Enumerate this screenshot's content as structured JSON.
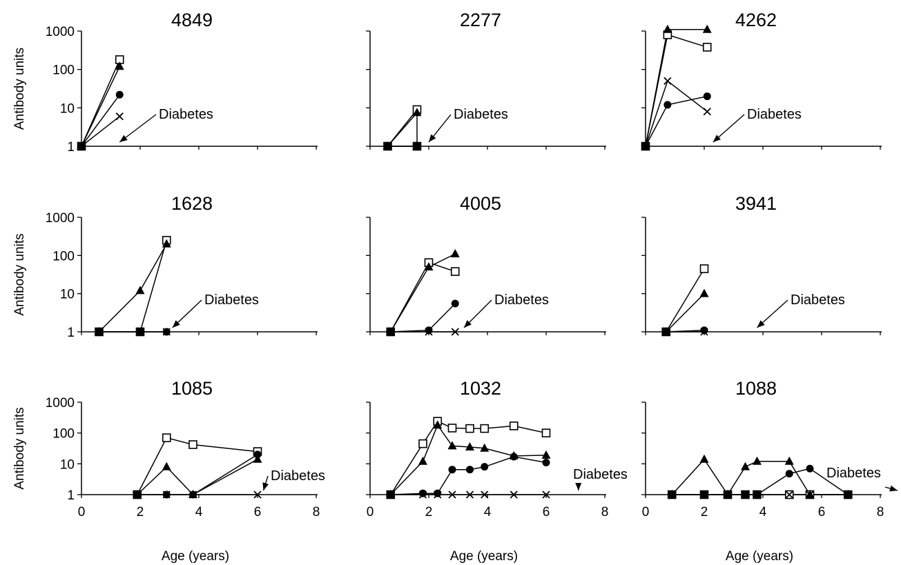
{
  "chart_data": [
    {
      "type": "line",
      "title": "4849",
      "ylabel": "Antibody units",
      "xlabel": "",
      "yscale": "log",
      "ylim": [
        1,
        1000
      ],
      "xlim": [
        0,
        8
      ],
      "yticks": [
        "1",
        "10",
        "100",
        "1000"
      ],
      "xticks": [],
      "annotation": {
        "text": "Diabetes",
        "arrow_to": [
          1.3,
          1.0
        ]
      },
      "series": [
        {
          "marker": "open-square",
          "x": [
            0,
            1.3
          ],
          "y": [
            1,
            180
          ]
        },
        {
          "marker": "filled-triangle",
          "x": [
            0,
            1.3
          ],
          "y": [
            1,
            120
          ]
        },
        {
          "marker": "filled-circle",
          "x": [
            0,
            1.3
          ],
          "y": [
            1,
            22
          ]
        },
        {
          "marker": "cross",
          "x": [
            0,
            1.3
          ],
          "y": [
            1,
            6
          ]
        }
      ]
    },
    {
      "type": "line",
      "title": "2277",
      "ylabel": "",
      "xlabel": "",
      "yscale": "log",
      "ylim": [
        1,
        1000
      ],
      "xlim": [
        0,
        8
      ],
      "yticks": [],
      "xticks": [],
      "annotation": {
        "text": "Diabetes",
        "arrow_to": [
          2.0,
          1.0
        ]
      },
      "series": [
        {
          "marker": "open-square",
          "x": [
            0.6,
            1.6,
            1.6
          ],
          "y": [
            1,
            9,
            1
          ]
        },
        {
          "marker": "filled-triangle",
          "x": [
            0.6,
            1.6
          ],
          "y": [
            1,
            7.5
          ]
        },
        {
          "marker": "filled-circle",
          "x": [
            0.6,
            1.6
          ],
          "y": [
            1,
            1
          ]
        },
        {
          "marker": "cross",
          "x": [
            0.6,
            1.6
          ],
          "y": [
            1,
            1
          ]
        }
      ]
    },
    {
      "type": "line",
      "title": "4262",
      "ylabel": "",
      "xlabel": "",
      "yscale": "log",
      "ylim": [
        1,
        1000
      ],
      "xlim": [
        0,
        8
      ],
      "yticks": [],
      "xticks": [],
      "annotation": {
        "text": "Diabetes",
        "arrow_to": [
          2.3,
          1.0
        ]
      },
      "series": [
        {
          "marker": "open-square",
          "x": [
            0,
            0.75,
            2.1
          ],
          "y": [
            1,
            800,
            380
          ]
        },
        {
          "marker": "filled-triangle",
          "x": [
            0,
            0.75,
            2.1
          ],
          "y": [
            1,
            1100,
            1100
          ]
        },
        {
          "marker": "filled-circle",
          "x": [
            0,
            0.75,
            2.1
          ],
          "y": [
            1,
            12,
            20
          ]
        },
        {
          "marker": "cross",
          "x": [
            0,
            0.75,
            2.1
          ],
          "y": [
            1,
            50,
            8
          ]
        }
      ]
    },
    {
      "type": "line",
      "title": "1628",
      "ylabel": "Antibody units",
      "xlabel": "",
      "yscale": "log",
      "ylim": [
        1,
        1000
      ],
      "xlim": [
        0,
        8
      ],
      "yticks": [
        "1",
        "10",
        "100",
        "1000"
      ],
      "xticks": [],
      "annotation": {
        "text": "Diabetes",
        "arrow_to": [
          3.1,
          1.0
        ]
      },
      "series": [
        {
          "marker": "open-square",
          "x": [
            0.6,
            2.0,
            2.9
          ],
          "y": [
            1,
            1,
            250
          ]
        },
        {
          "marker": "filled-triangle",
          "x": [
            0.6,
            2.0,
            2.9
          ],
          "y": [
            1,
            12,
            200
          ]
        },
        {
          "marker": "filled-circle",
          "x": [
            0.6,
            2.0,
            2.9
          ],
          "y": [
            1,
            1,
            1
          ]
        },
        {
          "marker": "cross",
          "x": [
            0.6,
            2.0,
            2.9
          ],
          "y": [
            1,
            1,
            1
          ]
        }
      ]
    },
    {
      "type": "line",
      "title": "4005",
      "ylabel": "",
      "xlabel": "",
      "yscale": "log",
      "ylim": [
        1,
        1000
      ],
      "xlim": [
        0,
        8
      ],
      "yticks": [],
      "xticks": [],
      "annotation": {
        "text": "Diabetes",
        "arrow_to": [
          3.2,
          1.0
        ]
      },
      "series": [
        {
          "marker": "open-square",
          "x": [
            0.7,
            2.0,
            2.9
          ],
          "y": [
            1,
            65,
            38
          ]
        },
        {
          "marker": "filled-triangle",
          "x": [
            0.7,
            2.0,
            2.9
          ],
          "y": [
            1,
            50,
            110
          ]
        },
        {
          "marker": "filled-circle",
          "x": [
            0.7,
            2.0,
            2.9
          ],
          "y": [
            1,
            1.1,
            5.5
          ]
        },
        {
          "marker": "cross",
          "x": [
            0.7,
            2.0,
            2.9
          ],
          "y": [
            1,
            1,
            1
          ]
        }
      ]
    },
    {
      "type": "line",
      "title": "3941",
      "ylabel": "",
      "xlabel": "",
      "yscale": "log",
      "ylim": [
        1,
        1000
      ],
      "xlim": [
        0,
        8
      ],
      "yticks": [],
      "xticks": [],
      "annotation": {
        "text": "Diabetes",
        "arrow_to": [
          3.8,
          1.0
        ]
      },
      "series": [
        {
          "marker": "open-square",
          "x": [
            0.7,
            2.0
          ],
          "y": [
            1,
            45
          ]
        },
        {
          "marker": "filled-triangle",
          "x": [
            0.7,
            2.0
          ],
          "y": [
            1,
            10
          ]
        },
        {
          "marker": "filled-circle",
          "x": [
            0.7,
            2.0
          ],
          "y": [
            1,
            1.1
          ]
        },
        {
          "marker": "cross",
          "x": [
            0.7,
            2.0
          ],
          "y": [
            1,
            1
          ]
        }
      ]
    },
    {
      "type": "line",
      "title": "1085",
      "ylabel": "Antibody units",
      "xlabel": "Age (years)",
      "yscale": "log",
      "ylim": [
        1,
        1000
      ],
      "xlim": [
        0,
        8
      ],
      "yticks": [
        "1",
        "10",
        "100",
        "1000"
      ],
      "xticks": [
        "0",
        "2",
        "4",
        "6",
        "8"
      ],
      "annotation": {
        "text": "Diabetes",
        "arrow_to": [
          6.2,
          1.0
        ]
      },
      "series": [
        {
          "marker": "open-square",
          "x": [
            1.9,
            2.9,
            3.8,
            6.0
          ],
          "y": [
            1,
            70,
            42,
            25
          ]
        },
        {
          "marker": "filled-triangle",
          "x": [
            1.9,
            2.9,
            3.8,
            6.0
          ],
          "y": [
            1,
            8,
            1,
            14
          ]
        },
        {
          "marker": "filled-circle",
          "x": [
            1.9,
            2.9,
            3.8,
            6.0
          ],
          "y": [
            1,
            1,
            1,
            20
          ]
        },
        {
          "marker": "cross",
          "x": [
            1.9,
            2.9,
            3.8,
            6.0
          ],
          "y": [
            1,
            1,
            1,
            1
          ]
        }
      ]
    },
    {
      "type": "line",
      "title": "1032",
      "ylabel": "",
      "xlabel": "Age (years)",
      "yscale": "log",
      "ylim": [
        1,
        1000
      ],
      "xlim": [
        0,
        8
      ],
      "yticks": [],
      "xticks": [
        "0",
        "2",
        "4",
        "6",
        "8"
      ],
      "annotation": {
        "text": "Diabetes",
        "arrow_to": [
          7.1,
          1.0
        ]
      },
      "series": [
        {
          "marker": "open-square",
          "x": [
            0.7,
            1.8,
            2.3,
            2.8,
            3.4,
            3.9,
            4.9,
            6.0
          ],
          "y": [
            1,
            45,
            240,
            145,
            140,
            140,
            170,
            100
          ]
        },
        {
          "marker": "filled-triangle",
          "x": [
            0.7,
            1.8,
            2.3,
            2.8,
            3.4,
            3.9,
            4.9,
            6.0
          ],
          "y": [
            1,
            12,
            180,
            38,
            35,
            32,
            18,
            19
          ]
        },
        {
          "marker": "filled-circle",
          "x": [
            0.7,
            1.8,
            2.3,
            2.8,
            3.4,
            3.9,
            4.9,
            6.0
          ],
          "y": [
            1,
            1.1,
            1.1,
            6.5,
            6.5,
            8,
            17,
            11
          ]
        },
        {
          "marker": "cross",
          "x": [
            0.7,
            1.8,
            2.3,
            2.8,
            3.4,
            3.9,
            4.9,
            6.0
          ],
          "y": [
            1,
            1,
            1,
            1,
            1,
            1,
            1,
            1
          ]
        }
      ]
    },
    {
      "type": "line",
      "title": "1088",
      "ylabel": "",
      "xlabel": "Age (years)",
      "yscale": "log",
      "ylim": [
        1,
        1000
      ],
      "xlim": [
        0,
        8
      ],
      "yticks": [],
      "xticks": [
        "0",
        "2",
        "4",
        "6",
        "8"
      ],
      "annotation": {
        "text": "Diabetes",
        "arrow_to": [
          8.6,
          1.0
        ]
      },
      "series": [
        {
          "marker": "open-square",
          "x": [
            0.9,
            2.0,
            2.8,
            3.4,
            3.8,
            4.9,
            5.6,
            6.9
          ],
          "y": [
            1,
            1,
            1,
            1,
            1,
            1,
            1,
            1
          ]
        },
        {
          "marker": "filled-triangle",
          "x": [
            0.9,
            2.0,
            2.8,
            3.4,
            3.8,
            4.9,
            5.6,
            6.9
          ],
          "y": [
            1,
            14,
            1,
            8,
            12,
            12,
            1,
            1
          ]
        },
        {
          "marker": "filled-circle",
          "x": [
            0.9,
            2.0,
            2.8,
            3.4,
            3.8,
            4.9,
            5.6,
            6.9
          ],
          "y": [
            1,
            1,
            1,
            1,
            1,
            4.8,
            7,
            1
          ]
        },
        {
          "marker": "cross",
          "x": [
            0.9,
            2.0,
            2.8,
            3.4,
            3.8,
            4.9,
            5.6,
            6.9
          ],
          "y": [
            1,
            1,
            1,
            1,
            1,
            1,
            1,
            1
          ]
        }
      ]
    }
  ]
}
